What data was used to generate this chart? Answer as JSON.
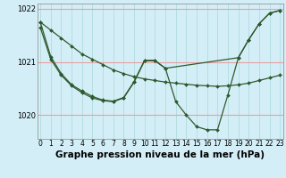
{
  "bg_color": "#d4eef7",
  "grid_color_h": "#e8a0a0",
  "grid_color_v": "#a8d8d8",
  "line_color": "#2d5a2d",
  "marker_color": "#2d5a2d",
  "xlabel": "Graphe pression niveau de la mer (hPa)",
  "xlabel_fontsize": 7.5,
  "tick_fontsize": 6.0,
  "ylim": [
    1019.55,
    1022.1
  ],
  "yticks": [
    1020,
    1021,
    1022
  ],
  "xlim": [
    -0.3,
    23.3
  ],
  "xticks": [
    0,
    1,
    2,
    3,
    4,
    5,
    6,
    7,
    8,
    9,
    10,
    11,
    12,
    13,
    14,
    15,
    16,
    17,
    18,
    19,
    20,
    21,
    22,
    23
  ],
  "series": [
    {
      "x": [
        0,
        1,
        2,
        3,
        4,
        5,
        6,
        7,
        8,
        9,
        10,
        11,
        12,
        13,
        14,
        15,
        16,
        17,
        18,
        19,
        20,
        21,
        22,
        23
      ],
      "y": [
        1021.75,
        1021.6,
        1021.45,
        1021.3,
        1021.15,
        1021.05,
        1020.95,
        1020.85,
        1020.78,
        1020.72,
        1020.68,
        1020.65,
        1020.62,
        1020.6,
        1020.58,
        1020.56,
        1020.55,
        1020.54,
        1020.55,
        1020.57,
        1020.6,
        1020.65,
        1020.7,
        1020.75
      ]
    },
    {
      "x": [
        0,
        1,
        2,
        3,
        4,
        5,
        6,
        7,
        8,
        9,
        10,
        11,
        12,
        13,
        14,
        15,
        16,
        17,
        18,
        19,
        20,
        21,
        22,
        23
      ],
      "y": [
        1021.65,
        1021.05,
        1020.75,
        1020.55,
        1020.42,
        1020.32,
        1020.27,
        1020.25,
        1020.32,
        1020.62,
        1021.02,
        1021.02,
        1020.88,
        1020.25,
        1020.0,
        1019.78,
        1019.72,
        1019.72,
        1020.38,
        1021.08,
        1021.42,
        1021.72,
        1021.92,
        1021.97
      ]
    },
    {
      "x": [
        0,
        1,
        2,
        3,
        4,
        5,
        6,
        7,
        8,
        9,
        10,
        11,
        12,
        19,
        20,
        21,
        22,
        23
      ],
      "y": [
        1021.75,
        1021.1,
        1020.78,
        1020.57,
        1020.45,
        1020.35,
        1020.28,
        1020.26,
        1020.33,
        1020.63,
        1021.03,
        1021.03,
        1020.88,
        1021.08,
        1021.42,
        1021.72,
        1021.92,
        1021.97
      ]
    }
  ]
}
